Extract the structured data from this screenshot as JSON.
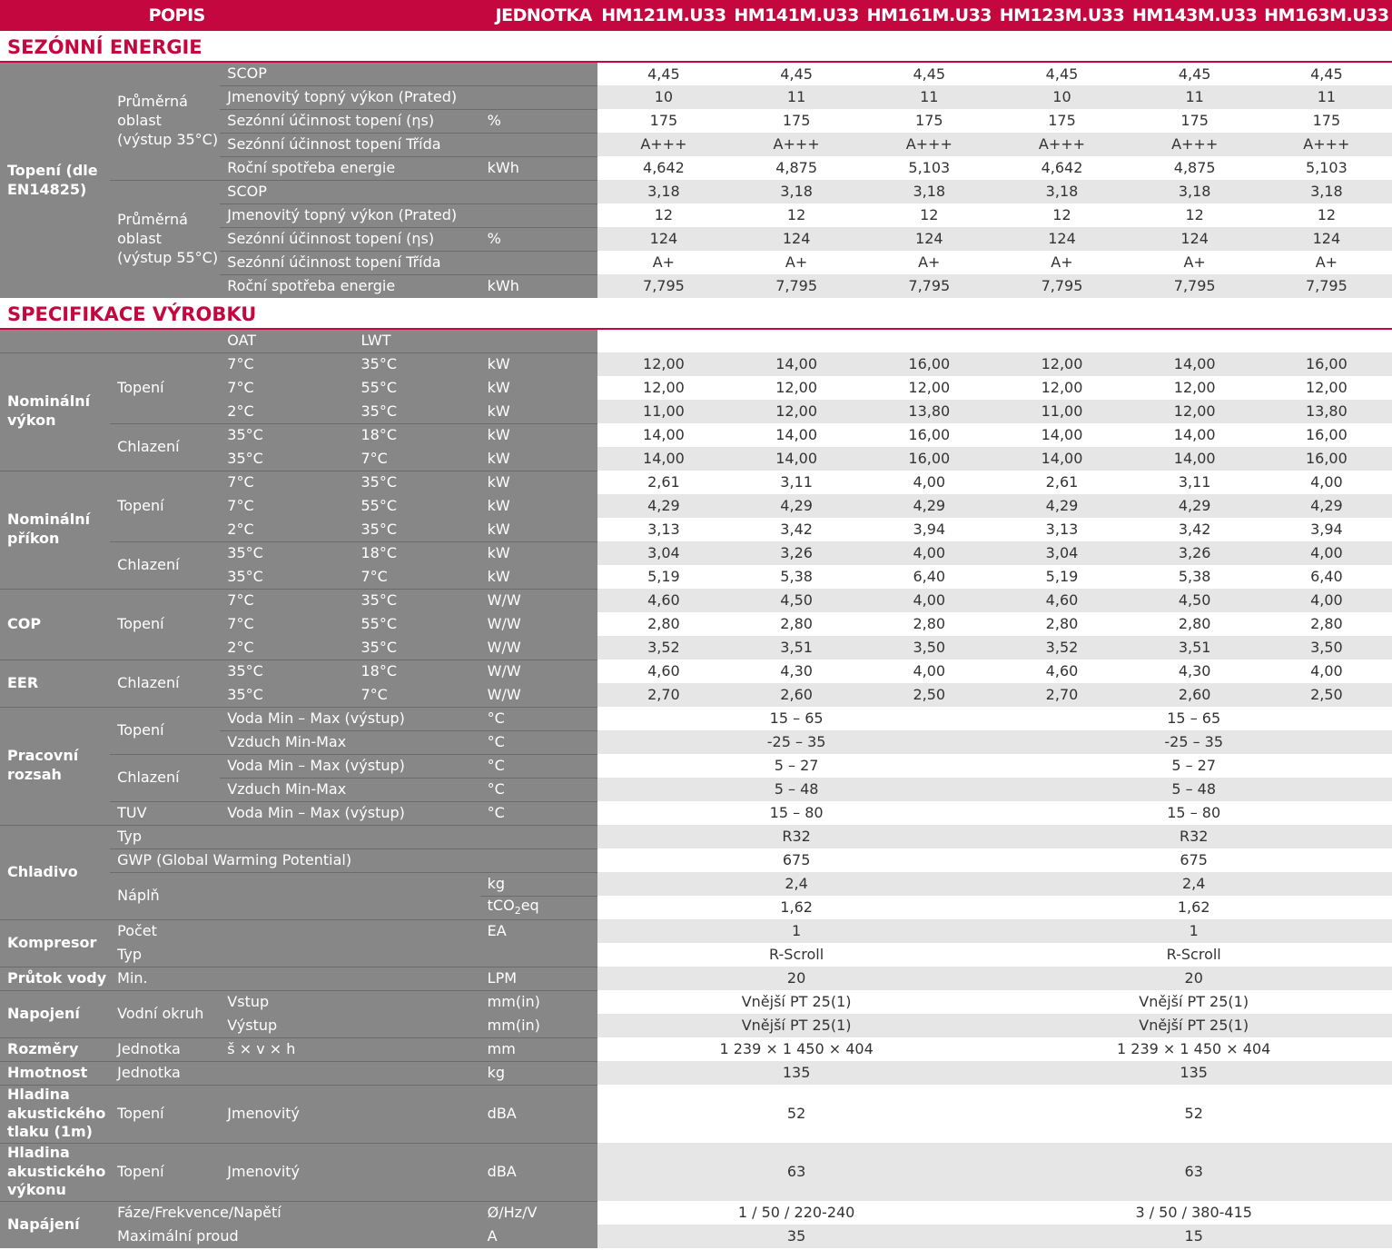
{
  "header": {
    "popis": "POPIS",
    "jednotka": "JEDNOTKA",
    "models": [
      "HM121M.U33",
      "HM141M.U33",
      "HM161M.U33",
      "HM123M.U33",
      "HM143M.U33",
      "HM163M.U33"
    ]
  },
  "sections": {
    "seasonal": "SEZÓNNÍ ENERGIE",
    "spec": "SPECIFIKACE VÝROBKU"
  },
  "seasonal": {
    "group": "Topení (dle EN14825)",
    "sub35": "Průměrná oblast (výstup 35°C)",
    "sub55": "Průměrná oblast (výstup 55°C)",
    "rows35": [
      {
        "label": "SCOP",
        "unit": "",
        "v": [
          "4,45",
          "4,45",
          "4,45",
          "4,45",
          "4,45",
          "4,45"
        ]
      },
      {
        "label": "Jmenovitý topný výkon (Prated)",
        "unit": "",
        "v": [
          "10",
          "11",
          "11",
          "10",
          "11",
          "11"
        ]
      },
      {
        "label": "Sezónní účinnost topení (ηs)",
        "unit": "%",
        "v": [
          "175",
          "175",
          "175",
          "175",
          "175",
          "175"
        ]
      },
      {
        "label": "Sezónní účinnost topení Třída",
        "unit": "",
        "v": [
          "A+++",
          "A+++",
          "A+++",
          "A+++",
          "A+++",
          "A+++"
        ]
      },
      {
        "label": "Roční spotřeba energie",
        "unit": "kWh",
        "v": [
          "4,642",
          "4,875",
          "5,103",
          "4,642",
          "4,875",
          "5,103"
        ]
      }
    ],
    "rows55": [
      {
        "label": "SCOP",
        "unit": "",
        "v": [
          "3,18",
          "3,18",
          "3,18",
          "3,18",
          "3,18",
          "3,18"
        ]
      },
      {
        "label": "Jmenovitý topný výkon (Prated)",
        "unit": "",
        "v": [
          "12",
          "12",
          "12",
          "12",
          "12",
          "12"
        ]
      },
      {
        "label": "Sezónní účinnost topení (ηs)",
        "unit": "%",
        "v": [
          "124",
          "124",
          "124",
          "124",
          "124",
          "124"
        ]
      },
      {
        "label": "Sezónní účinnost topení Třída",
        "unit": "",
        "v": [
          "A+",
          "A+",
          "A+",
          "A+",
          "A+",
          "A+"
        ]
      },
      {
        "label": "Roční spotřeba energie",
        "unit": "kWh",
        "v": [
          "7,795",
          "7,795",
          "7,795",
          "7,795",
          "7,795",
          "7,795"
        ]
      }
    ]
  },
  "spec": {
    "oat": "OAT",
    "lwt": "LWT",
    "blocks": [
      {
        "group": "Nominální výkon",
        "subs": [
          {
            "name": "Topení",
            "rows": [
              {
                "oat": "7°C",
                "lwt": "35°C",
                "unit": "kW",
                "v": [
                  "12,00",
                  "14,00",
                  "16,00",
                  "12,00",
                  "14,00",
                  "16,00"
                ]
              },
              {
                "oat": "7°C",
                "lwt": "55°C",
                "unit": "kW",
                "v": [
                  "12,00",
                  "12,00",
                  "12,00",
                  "12,00",
                  "12,00",
                  "12,00"
                ]
              },
              {
                "oat": "2°C",
                "lwt": "35°C",
                "unit": "kW",
                "v": [
                  "11,00",
                  "12,00",
                  "13,80",
                  "11,00",
                  "12,00",
                  "13,80"
                ]
              }
            ]
          },
          {
            "name": "Chlazení",
            "rows": [
              {
                "oat": "35°C",
                "lwt": "18°C",
                "unit": "kW",
                "v": [
                  "14,00",
                  "14,00",
                  "16,00",
                  "14,00",
                  "14,00",
                  "16,00"
                ]
              },
              {
                "oat": "35°C",
                "lwt": "7°C",
                "unit": "kW",
                "v": [
                  "14,00",
                  "14,00",
                  "16,00",
                  "14,00",
                  "14,00",
                  "16,00"
                ]
              }
            ]
          }
        ]
      },
      {
        "group": "Nominální příkon",
        "subs": [
          {
            "name": "Topení",
            "rows": [
              {
                "oat": "7°C",
                "lwt": "35°C",
                "unit": "kW",
                "v": [
                  "2,61",
                  "3,11",
                  "4,00",
                  "2,61",
                  "3,11",
                  "4,00"
                ]
              },
              {
                "oat": "7°C",
                "lwt": "55°C",
                "unit": "kW",
                "v": [
                  "4,29",
                  "4,29",
                  "4,29",
                  "4,29",
                  "4,29",
                  "4,29"
                ]
              },
              {
                "oat": "2°C",
                "lwt": "35°C",
                "unit": "kW",
                "v": [
                  "3,13",
                  "3,42",
                  "3,94",
                  "3,13",
                  "3,42",
                  "3,94"
                ]
              }
            ]
          },
          {
            "name": "Chlazení",
            "rows": [
              {
                "oat": "35°C",
                "lwt": "18°C",
                "unit": "kW",
                "v": [
                  "3,04",
                  "3,26",
                  "4,00",
                  "3,04",
                  "3,26",
                  "4,00"
                ]
              },
              {
                "oat": "35°C",
                "lwt": "7°C",
                "unit": "kW",
                "v": [
                  "5,19",
                  "5,38",
                  "6,40",
                  "5,19",
                  "5,38",
                  "6,40"
                ]
              }
            ]
          }
        ]
      },
      {
        "group": "COP",
        "subs": [
          {
            "name": "Topení",
            "rows": [
              {
                "oat": "7°C",
                "lwt": "35°C",
                "unit": "W/W",
                "v": [
                  "4,60",
                  "4,50",
                  "4,00",
                  "4,60",
                  "4,50",
                  "4,00"
                ]
              },
              {
                "oat": "7°C",
                "lwt": "55°C",
                "unit": "W/W",
                "v": [
                  "2,80",
                  "2,80",
                  "2,80",
                  "2,80",
                  "2,80",
                  "2,80"
                ]
              },
              {
                "oat": "2°C",
                "lwt": "35°C",
                "unit": "W/W",
                "v": [
                  "3,52",
                  "3,51",
                  "3,50",
                  "3,52",
                  "3,51",
                  "3,50"
                ]
              }
            ]
          }
        ]
      },
      {
        "group": "EER",
        "subs": [
          {
            "name": "Chlazení",
            "rows": [
              {
                "oat": "35°C",
                "lwt": "18°C",
                "unit": "W/W",
                "v": [
                  "4,60",
                  "4,30",
                  "4,00",
                  "4,60",
                  "4,30",
                  "4,00"
                ]
              },
              {
                "oat": "35°C",
                "lwt": "7°C",
                "unit": "W/W",
                "v": [
                  "2,70",
                  "2,60",
                  "2,50",
                  "2,70",
                  "2,60",
                  "2,50"
                ]
              }
            ]
          }
        ]
      }
    ],
    "range": {
      "group": "Pracovní rozsah",
      "subs": [
        {
          "name": "Topení",
          "rows": [
            {
              "label": "Voda Min – Max (výstup)",
              "unit": "°C",
              "a": "15 – 65",
              "b": "15 – 65"
            },
            {
              "label": "Vzduch Min-Max",
              "unit": "°C",
              "a": "-25 – 35",
              "b": "-25 – 35"
            }
          ]
        },
        {
          "name": "Chlazení",
          "rows": [
            {
              "label": "Voda Min – Max (výstup)",
              "unit": "°C",
              "a": "5 – 27",
              "b": "5 – 27"
            },
            {
              "label": "Vzduch Min-Max",
              "unit": "°C",
              "a": "5 – 48",
              "b": "5 – 48"
            }
          ]
        },
        {
          "name": "TUV",
          "rows": [
            {
              "label": "Voda Min – Max (výstup)",
              "unit": "°C",
              "a": "15 – 80",
              "b": "15 – 80"
            }
          ]
        }
      ]
    },
    "refrigerant": {
      "group": "Chladivo",
      "typ": {
        "label": "Typ",
        "a": "R32",
        "b": "R32"
      },
      "gwp": {
        "label": "GWP (Global Warming Potential)",
        "a": "675",
        "b": "675"
      },
      "fill": {
        "label": "Náplň",
        "unit_kg": "kg",
        "a_kg": "2,4",
        "b_kg": "2,4",
        "unit_t_pre": "tCO",
        "unit_t_sub": "2",
        "unit_t_post": "eq",
        "a_t": "1,62",
        "b_t": "1,62"
      }
    },
    "compressor": {
      "group": "Kompresor",
      "count": {
        "label": "Počet",
        "unit": "EA",
        "a": "1",
        "b": "1"
      },
      "type": {
        "label": "Typ",
        "a": "R-Scroll",
        "b": "R-Scroll"
      }
    },
    "flow": {
      "group": "Průtok vody",
      "label": "Min.",
      "unit": "LPM",
      "a": "20",
      "b": "20"
    },
    "conn": {
      "group": "Napojení",
      "sub": "Vodní okruh",
      "rows": [
        {
          "label": "Vstup",
          "unit": "mm(in)",
          "a": "Vnější PT 25(1)",
          "b": "Vnější PT 25(1)"
        },
        {
          "label": "Výstup",
          "unit": "mm(in)",
          "a": "Vnější PT 25(1)",
          "b": "Vnější PT 25(1)"
        }
      ]
    },
    "dim": {
      "group": "Rozměry",
      "sub": "Jednotka",
      "label": "š × v × h",
      "unit": "mm",
      "a": "1 239 × 1 450 × 404",
      "b": "1 239 × 1 450 × 404"
    },
    "weight": {
      "group": "Hmotnost",
      "sub": "Jednotka",
      "unit": "kg",
      "a": "135",
      "b": "135"
    },
    "spl": {
      "group": "Hladina akustického tlaku (1m)",
      "sub": "Topení",
      "label": "Jmenovitý",
      "unit": "dBA",
      "a": "52",
      "b": "52"
    },
    "swl": {
      "group": "Hladina akustického výkonu",
      "sub": "Topení",
      "label": "Jmenovitý",
      "unit": "dBA",
      "a": "63",
      "b": "63"
    },
    "power": {
      "group": "Napájení",
      "phase": {
        "label": "Fáze/Frekvence/Napětí",
        "unit": "Ø/Hz/V",
        "a": "1 / 50 / 220-240",
        "b": "3 / 50 / 380-415"
      },
      "current": {
        "label": "Maximální proud",
        "unit": "A",
        "a": "35",
        "b": "15"
      }
    }
  },
  "colors": {
    "accent": "#c5073f",
    "label_bg": "#878787",
    "stripe": "#e6e6e6"
  }
}
